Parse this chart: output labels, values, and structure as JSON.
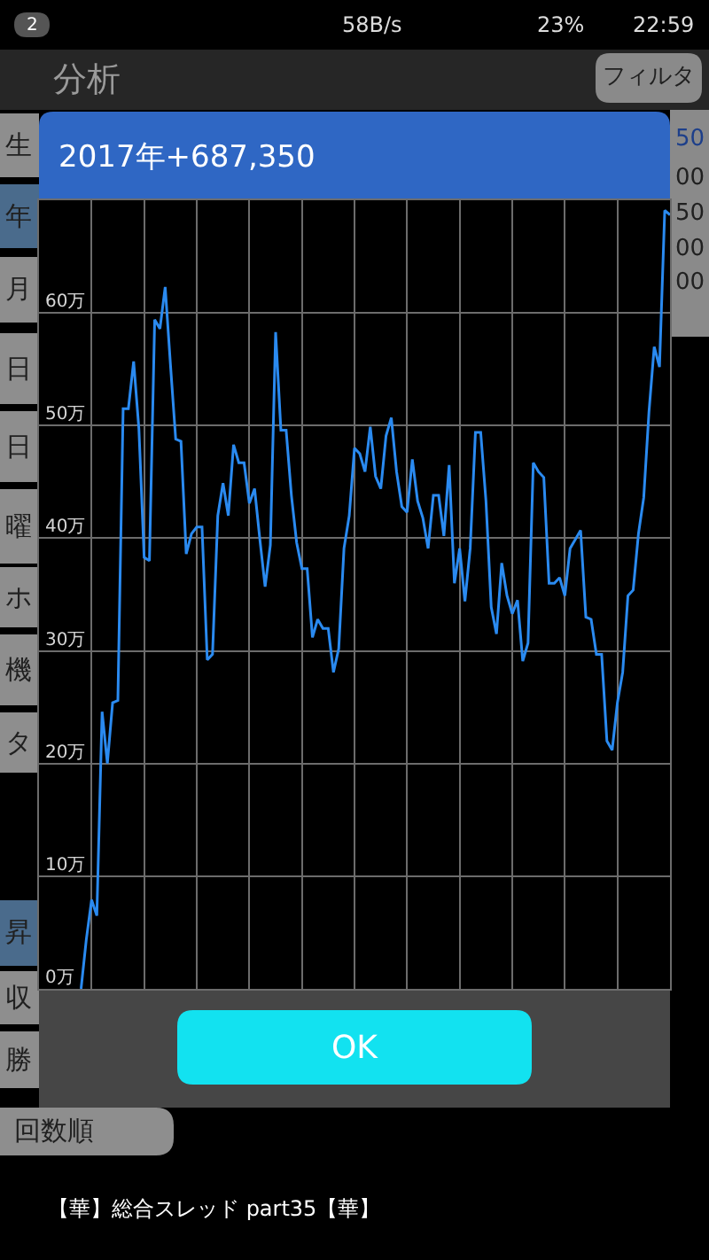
{
  "chart_data": {
    "type": "line",
    "title": "2017年+687,350",
    "categories": [
      null,
      null,
      null,
      null,
      null,
      null,
      null,
      null,
      null,
      null,
      null,
      null,
      null,
      null,
      null,
      null,
      null,
      null,
      null,
      null,
      null,
      null,
      null,
      null,
      null,
      null,
      null,
      null,
      null,
      null,
      null,
      null,
      null,
      null,
      null,
      null,
      null,
      null,
      null,
      null,
      null,
      null,
      null,
      null,
      null,
      null,
      null,
      null,
      null,
      null,
      null,
      null,
      null,
      null,
      null,
      null,
      null,
      null,
      null,
      null,
      null,
      null,
      null,
      null,
      null,
      null,
      null,
      null,
      null,
      null,
      null,
      null,
      null,
      null,
      null,
      null,
      null,
      null,
      null,
      null,
      null,
      null,
      null,
      null,
      null,
      null,
      null,
      null,
      null,
      null,
      null,
      null,
      null,
      null,
      null,
      null,
      null,
      null,
      null,
      null,
      null,
      null,
      null,
      null,
      null,
      null,
      null,
      null,
      null,
      null,
      null,
      null,
      null,
      null,
      null,
      null,
      null,
      null,
      null,
      null,
      null
    ],
    "series": [
      {
        "color": "#2a8af0",
        "values": [
          null,
          null,
          null,
          null,
          null,
          null,
          null,
          null,
          0,
          4.4,
          7.9,
          6.5,
          24.6,
          20.0,
          25.4,
          25.6,
          51.5,
          51.5,
          55.7,
          49.7,
          38.3,
          38.0,
          59.4,
          58.6,
          62.3,
          55.4,
          48.8,
          48.6,
          38.6,
          40.4,
          41.0,
          41.0,
          29.2,
          29.7,
          42.0,
          44.9,
          42.0,
          48.3,
          46.7,
          46.7,
          43.1,
          44.4,
          39.9,
          35.7,
          39.4,
          58.3,
          49.6,
          49.6,
          43.8,
          39.6,
          37.3,
          37.3,
          31.2,
          32.8,
          32.0,
          32.0,
          28.1,
          30.2,
          39.1,
          42.0,
          48.0,
          47.5,
          45.9,
          49.9,
          45.5,
          44.4,
          49.1,
          50.7,
          45.9,
          42.8,
          42.3,
          47.0,
          43.3,
          41.8,
          39.1,
          43.8,
          43.8,
          40.2,
          46.5,
          36.0,
          39.1,
          34.4,
          39.1,
          49.4,
          49.4,
          43.3,
          33.9,
          31.5,
          37.8,
          34.9,
          33.3,
          34.5,
          29.1,
          30.7,
          46.7,
          45.9,
          45.4,
          36.0,
          36.0,
          36.5,
          34.9,
          39.1,
          39.9,
          40.7,
          33.0,
          32.8,
          29.7,
          29.7,
          22.0,
          21.2,
          25.4,
          28.1,
          34.9,
          35.4,
          40.4,
          43.6,
          51.2,
          57.0,
          55.2,
          69.1,
          68.7
        ]
      }
    ],
    "ylim": [
      0,
      70
    ],
    "yticks": [
      {
        "value": 0,
        "label": "0万"
      },
      {
        "value": 10,
        "label": "10万"
      },
      {
        "value": 20,
        "label": "20万"
      },
      {
        "value": 30,
        "label": "30万"
      },
      {
        "value": 40,
        "label": "40万"
      },
      {
        "value": 50,
        "label": "50万"
      },
      {
        "value": 60,
        "label": "60万"
      }
    ],
    "grid": true,
    "tick_labels": "y",
    "annotations": [
      "2",
      "58B/s",
      "23%",
      "22:59",
      "分析",
      "フィルタ",
      "生",
      "年",
      "月",
      "日",
      "日",
      "曜",
      "ホ",
      "機",
      "タ",
      "昇",
      "収",
      "勝",
      "回数順",
      "50",
      "00",
      "50",
      "00",
      "00",
      "OK",
      "【華】総合スレッド part35【華】"
    ]
  }
}
